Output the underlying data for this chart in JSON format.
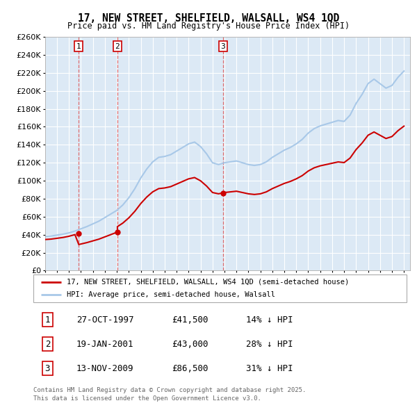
{
  "title": "17, NEW STREET, SHELFIELD, WALSALL, WS4 1QD",
  "subtitle": "Price paid vs. HM Land Registry's House Price Index (HPI)",
  "legend_label_red": "17, NEW STREET, SHELFIELD, WALSALL, WS4 1QD (semi-detached house)",
  "legend_label_blue": "HPI: Average price, semi-detached house, Walsall",
  "sale_dates": [
    1997.82,
    2001.05,
    2009.87
  ],
  "sale_prices": [
    41500,
    43000,
    86500
  ],
  "sale_labels": [
    "1",
    "2",
    "3"
  ],
  "table_rows": [
    [
      "1",
      "27-OCT-1997",
      "£41,500",
      "14% ↓ HPI"
    ],
    [
      "2",
      "19-JAN-2001",
      "£43,000",
      "28% ↓ HPI"
    ],
    [
      "3",
      "13-NOV-2009",
      "£86,500",
      "31% ↓ HPI"
    ]
  ],
  "footnote1": "Contains HM Land Registry data © Crown copyright and database right 2025.",
  "footnote2": "This data is licensed under the Open Government Licence v3.0.",
  "hpi_color": "#a8c8e8",
  "price_color": "#cc0000",
  "sale_marker_color": "#cc0000",
  "vline_color": "#e06060",
  "bg_color": "#dce9f5",
  "grid_color": "#ffffff",
  "ylim_max": 260000,
  "xlim_start": 1995.0,
  "xlim_end": 2025.5,
  "hpi_years": [
    1995.0,
    1995.5,
    1996.0,
    1996.5,
    1997.0,
    1997.5,
    1998.0,
    1998.5,
    1999.0,
    1999.5,
    2000.0,
    2000.5,
    2001.0,
    2001.5,
    2002.0,
    2002.5,
    2003.0,
    2003.5,
    2004.0,
    2004.5,
    2005.0,
    2005.5,
    2006.0,
    2006.5,
    2007.0,
    2007.5,
    2008.0,
    2008.5,
    2009.0,
    2009.5,
    2010.0,
    2010.5,
    2011.0,
    2011.5,
    2012.0,
    2012.5,
    2013.0,
    2013.5,
    2014.0,
    2014.5,
    2015.0,
    2015.5,
    2016.0,
    2016.5,
    2017.0,
    2017.5,
    2018.0,
    2018.5,
    2019.0,
    2019.5,
    2020.0,
    2020.5,
    2021.0,
    2021.5,
    2022.0,
    2022.5,
    2023.0,
    2023.5,
    2024.0,
    2024.5,
    2025.0
  ],
  "hpi_values": [
    38000,
    38500,
    39500,
    40500,
    42000,
    44000,
    46500,
    49000,
    52000,
    55000,
    59000,
    63000,
    67000,
    73000,
    81000,
    91000,
    103000,
    113000,
    121000,
    126000,
    127000,
    129000,
    133000,
    137000,
    141000,
    143000,
    138000,
    130000,
    120000,
    118000,
    120000,
    121000,
    122000,
    120000,
    118000,
    117000,
    118000,
    121000,
    126000,
    130000,
    134000,
    137000,
    141000,
    146000,
    153000,
    158000,
    161000,
    163000,
    165000,
    167000,
    166000,
    173000,
    186000,
    196000,
    208000,
    213000,
    208000,
    203000,
    206000,
    215000,
    222000
  ]
}
